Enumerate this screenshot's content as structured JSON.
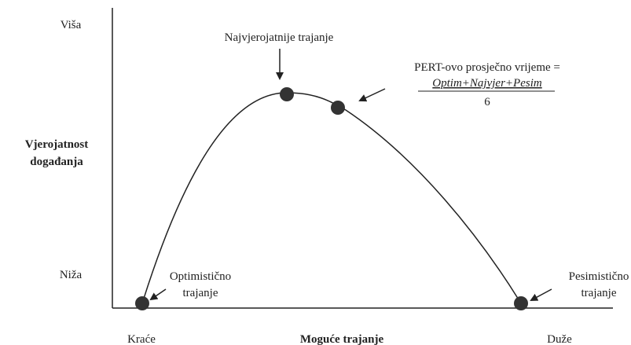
{
  "axes": {
    "y_high": "Viša",
    "y_low": "Niža",
    "y_label": [
      "Vjerojatnost",
      "događanja"
    ],
    "x_low": "Kraće",
    "x_label": "Moguće trajanje",
    "x_high": "Duže"
  },
  "annotations": {
    "most_likely": "Najvjerojatnije trajanje",
    "pert": {
      "text": "PERT-ovo prosječno vrijeme =",
      "numerator": "Optim+Najvjer+Pesim",
      "denominator": "6"
    },
    "optimistic": [
      "Optimistično",
      "trajanje"
    ],
    "pessimistic": [
      "Pesimistično",
      "trajanje"
    ]
  }
}
